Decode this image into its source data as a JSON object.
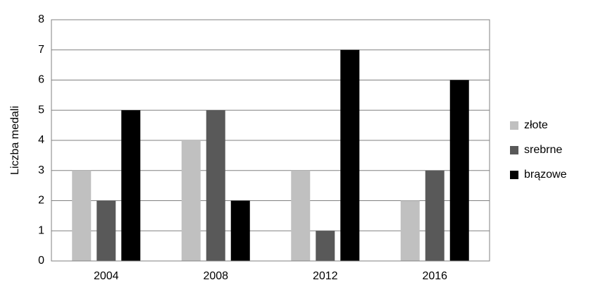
{
  "chart_data": {
    "type": "bar",
    "y_label": "Liczba medali",
    "categories": [
      "2004",
      "2008",
      "2012",
      "2016"
    ],
    "series": [
      {
        "name": "złote",
        "color": "#c0c0c0",
        "values": [
          3,
          4,
          3,
          2
        ]
      },
      {
        "name": "srebrne",
        "color": "#595959",
        "values": [
          2,
          5,
          1,
          3
        ]
      },
      {
        "name": "brązowe",
        "color": "#000000",
        "values": [
          5,
          2,
          7,
          6
        ]
      }
    ],
    "ylim": [
      0,
      8
    ],
    "yticks": [
      0,
      1,
      2,
      3,
      4,
      5,
      6,
      7,
      8
    ],
    "grid": true,
    "legend": "right"
  }
}
